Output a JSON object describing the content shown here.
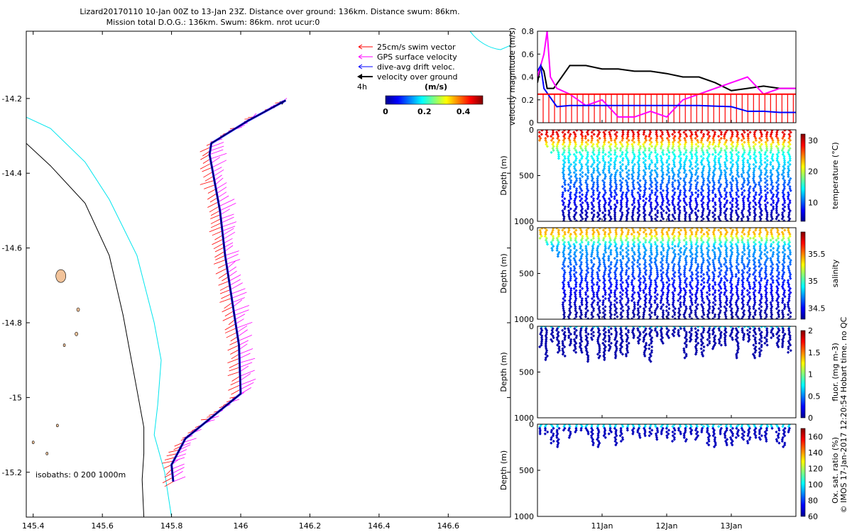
{
  "header": {
    "line1": "Lizard20170110 10-Jan 00Z to 13-Jan 23Z. Distance over ground: 136km. Distance swum: 86km.",
    "line2": "Mission total D.O.G.: 136km. Swum: 86km. nrot ucur:0"
  },
  "side_note": "© IMOS 17-Jan-2017 12:20:54 Hobart time. no QC",
  "colors": {
    "swim": "#ff0000",
    "gps": "#ff00ff",
    "drift": "#0000ff",
    "ground": "#000000",
    "isobath200": "#000000",
    "isobath1000": "#00e5ee",
    "land": "#f2c39a"
  },
  "chart_data": [
    {
      "type": "line",
      "title": "Glider track map",
      "xlabel": "",
      "ylabel": "",
      "xlim": [
        145.38,
        146.78
      ],
      "ylim": [
        -15.32,
        -14.02
      ],
      "xticks": [
        "145.4",
        "145.6",
        "145.8",
        "146",
        "146.2",
        "146.4",
        "146.6"
      ],
      "yticks": [
        "-14.2",
        "-14.4",
        "-14.6",
        "-14.8",
        "-15",
        "-15.2"
      ],
      "legend": {
        "position": "top-right",
        "entries": [
          "25cm/s swim vector",
          "GPS surface velocity",
          "dive-avg drift veloc.",
          "velocity over ground"
        ]
      },
      "scale_label": "4h",
      "colorbar": {
        "label": "(m/s)",
        "ticks": [
          "0",
          "0.2",
          "0.4"
        ],
        "range": [
          0,
          0.5
        ]
      },
      "isobath_label": "isobaths: 0   200  1000m",
      "track": {
        "lon": [
          145.805,
          145.8,
          145.84,
          145.92,
          146.0,
          145.995,
          145.955,
          145.94,
          145.91,
          145.915,
          146.02,
          146.13
        ],
        "lat": [
          -15.225,
          -15.18,
          -15.11,
          -15.05,
          -14.99,
          -14.86,
          -14.62,
          -14.5,
          -14.35,
          -14.32,
          -14.26,
          -14.205
        ]
      },
      "isobath_1000": {
        "lon": [
          145.38,
          145.45,
          145.55,
          145.62,
          145.7,
          145.75,
          145.77,
          145.76,
          145.75,
          145.78,
          145.8
        ],
        "lat": [
          -14.25,
          -14.28,
          -14.37,
          -14.47,
          -14.62,
          -14.8,
          -14.9,
          -15.02,
          -15.1,
          -15.2,
          -15.32
        ]
      },
      "isobath_200": {
        "lon": [
          145.38,
          145.45,
          145.55,
          145.62,
          145.66,
          145.7,
          145.72,
          145.72,
          145.715,
          145.72
        ],
        "lat": [
          -14.32,
          -14.38,
          -14.48,
          -14.62,
          -14.78,
          -14.98,
          -15.08,
          -15.15,
          -15.22,
          -15.32
        ]
      },
      "islands": [
        {
          "lon": 145.48,
          "lat": -14.675,
          "size": 7
        },
        {
          "lon": 145.53,
          "lat": -14.765,
          "size": 2
        },
        {
          "lon": 145.525,
          "lat": -14.83,
          "size": 2
        },
        {
          "lon": 145.49,
          "lat": -14.86,
          "size": 1.5
        },
        {
          "lon": 145.47,
          "lat": -15.075,
          "size": 1.5
        },
        {
          "lon": 145.44,
          "lat": -15.15,
          "size": 1.5
        },
        {
          "lon": 145.4,
          "lat": -15.12,
          "size": 1.5
        }
      ]
    },
    {
      "type": "line",
      "title": "",
      "ylabel": "velocity magnitude (m/s)",
      "ylim": [
        0,
        0.8
      ],
      "yticks": [
        "0",
        "0.2",
        "0.4",
        "0.6",
        "0.8"
      ],
      "xlim_days": [
        10.0,
        14.0
      ],
      "series": [
        {
          "name": "velocity over ground",
          "color": "#000000",
          "t": [
            10.0,
            10.05,
            10.1,
            10.15,
            10.25,
            10.5,
            10.75,
            11.0,
            11.25,
            11.5,
            11.75,
            12.0,
            12.25,
            12.5,
            12.75,
            13.0,
            13.25,
            13.5,
            13.75,
            14.0
          ],
          "v": [
            0.35,
            0.5,
            0.45,
            0.3,
            0.3,
            0.5,
            0.5,
            0.47,
            0.47,
            0.45,
            0.45,
            0.43,
            0.4,
            0.4,
            0.35,
            0.28,
            0.3,
            0.32,
            0.3,
            0.3
          ]
        },
        {
          "name": "GPS surface velocity",
          "color": "#ff00ff",
          "t": [
            10.0,
            10.1,
            10.15,
            10.2,
            10.3,
            10.5,
            10.75,
            11.0,
            11.25,
            11.5,
            11.75,
            12.0,
            12.25,
            12.5,
            12.75,
            13.0,
            13.25,
            13.5,
            13.75,
            14.0
          ],
          "v": [
            0.4,
            0.6,
            0.8,
            0.4,
            0.3,
            0.25,
            0.15,
            0.2,
            0.05,
            0.05,
            0.1,
            0.05,
            0.2,
            0.25,
            0.3,
            0.35,
            0.4,
            0.25,
            0.3,
            0.3
          ]
        },
        {
          "name": "dive-avg drift veloc.",
          "color": "#0000ff",
          "t": [
            10.0,
            10.05,
            10.1,
            10.3,
            10.5,
            11.0,
            11.5,
            12.0,
            12.5,
            13.0,
            13.25,
            13.5,
            13.75,
            14.0
          ],
          "v": [
            0.45,
            0.5,
            0.3,
            0.14,
            0.15,
            0.15,
            0.15,
            0.15,
            0.15,
            0.14,
            0.1,
            0.1,
            0.09,
            0.09
          ]
        },
        {
          "name": "25cm/s swim vector",
          "color": "#ff0000",
          "t": [
            10.0,
            14.0
          ],
          "v": [
            0.25,
            0.25
          ]
        }
      ]
    },
    {
      "type": "scatter",
      "ylabel": "Depth (m)",
      "colorbar_label": "temperature (°C)",
      "ylim": [
        1000,
        0
      ],
      "yticks": [
        "0",
        "500",
        "1000"
      ],
      "cticks": [
        "10",
        "20",
        "30"
      ],
      "crange": [
        4,
        32
      ]
    },
    {
      "type": "scatter",
      "ylabel": "Depth (m)",
      "colorbar_label": "salinity",
      "ylim": [
        1000,
        0
      ],
      "yticks": [
        "0",
        "500",
        "1000"
      ],
      "cticks": [
        "34.5",
        "35",
        "35.5"
      ],
      "crange": [
        34.3,
        35.9
      ]
    },
    {
      "type": "scatter",
      "ylabel": "Depth (m)",
      "colorbar_label": "fluor. (mg m-3)",
      "ylim": [
        1000,
        0
      ],
      "yticks": [
        "0",
        "500",
        "1000"
      ],
      "cticks": [
        "0",
        "0.5",
        "1",
        "1.5",
        "2"
      ],
      "crange": [
        0,
        2
      ]
    },
    {
      "type": "scatter",
      "ylabel": "Depth (m)",
      "colorbar_label": "Ox. sat. ratio (%)",
      "ylim": [
        1000,
        0
      ],
      "yticks": [
        "0",
        "500",
        "1000"
      ],
      "cticks": [
        "60",
        "80",
        "100",
        "120",
        "140",
        "160"
      ],
      "crange": [
        60,
        170
      ],
      "xticks": [
        "11Jan",
        "12Jan",
        "13Jan"
      ],
      "xtick_days": [
        11,
        12,
        13
      ]
    }
  ]
}
